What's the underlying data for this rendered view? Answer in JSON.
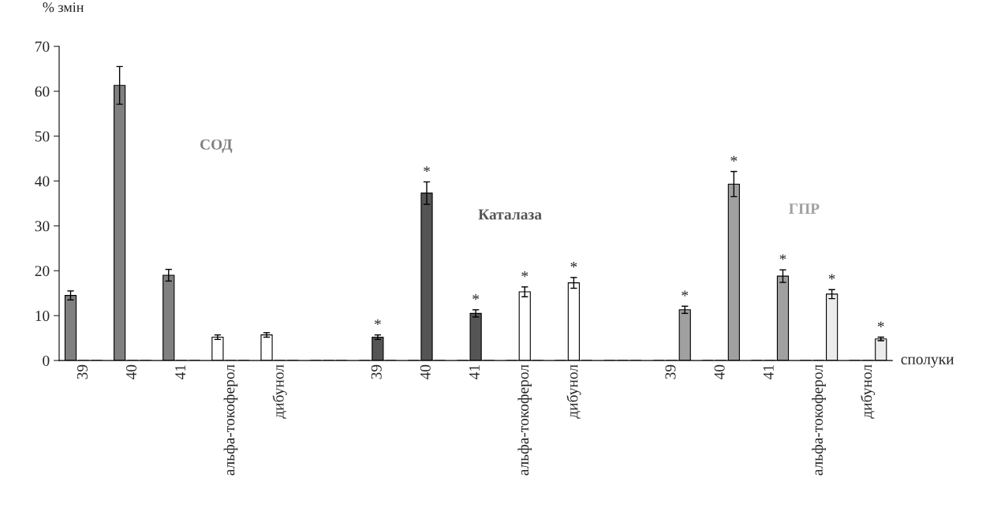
{
  "chart_data": {
    "type": "bar",
    "ylabel": "% змін",
    "xlabel": "сполуки",
    "categories": [
      "39",
      "40",
      "41",
      "альфа-токоферол",
      "дибунол",
      null,
      "39",
      "40",
      "41",
      "альфа-токоферол",
      "дибунол",
      null,
      "39",
      "40",
      "41",
      "альфа-токоферол",
      "дибунол"
    ],
    "series": [
      {
        "name": "СОД",
        "color": "#808080",
        "colors": [
          "#808080",
          "#808080",
          "#808080",
          "#ffffff",
          "#ffffff",
          "#808080",
          "#808080",
          "#808080",
          "#808080",
          "#808080",
          "#808080",
          "#808080",
          "#808080",
          "#808080",
          "#808080",
          "#808080",
          "#808080"
        ],
        "values": [
          14.5,
          61.3,
          19,
          5.2,
          5.7,
          0,
          0,
          0,
          0,
          0,
          0,
          0,
          0,
          0,
          0,
          0,
          0
        ],
        "errors": [
          1,
          4.2,
          1.3,
          0.5,
          0.5,
          null,
          null,
          null,
          null,
          null,
          null,
          null,
          null,
          null,
          null,
          null,
          null
        ]
      },
      {
        "name": "Каталаза",
        "color": "#555555",
        "colors": [
          "#555555",
          "#555555",
          "#555555",
          "#555555",
          "#555555",
          "#555555",
          "#555555",
          "#555555",
          "#555555",
          "#ffffff",
          "#ffffff",
          "#555555",
          "#555555",
          "#555555",
          "#555555",
          "#555555",
          "#555555"
        ],
        "values": [
          0,
          0,
          0,
          0,
          0,
          0,
          5.2,
          37.3,
          10.5,
          15.3,
          17.3,
          0,
          0,
          0,
          0,
          0,
          0
        ],
        "errors": [
          null,
          null,
          null,
          null,
          null,
          null,
          0.5,
          2.5,
          0.8,
          1.1,
          1.2,
          null,
          null,
          null,
          null,
          null,
          null
        ],
        "value_labels": [
          null,
          null,
          null,
          null,
          null,
          null,
          "*",
          "*",
          "*",
          "*",
          "*",
          null,
          null,
          null,
          null,
          null,
          null
        ]
      },
      {
        "name": "ГПР",
        "color": "#a0a0a0",
        "colors": [
          "#a0a0a0",
          "#a0a0a0",
          "#a0a0a0",
          "#a0a0a0",
          "#a0a0a0",
          "#a0a0a0",
          "#a0a0a0",
          "#a0a0a0",
          "#a0a0a0",
          "#a0a0a0",
          "#a0a0a0",
          "#a0a0a0",
          "#a0a0a0",
          "#a0a0a0",
          "#a0a0a0",
          "#ececec",
          "#ececec"
        ],
        "values": [
          0,
          0,
          0,
          0,
          0,
          0,
          0,
          0,
          0,
          0,
          0,
          0,
          11.3,
          39.3,
          18.8,
          14.8,
          4.8
        ],
        "errors": [
          null,
          null,
          null,
          null,
          null,
          null,
          null,
          null,
          null,
          null,
          null,
          null,
          0.8,
          2.8,
          1.4,
          1,
          0.4
        ],
        "value_labels": [
          null,
          null,
          null,
          null,
          null,
          null,
          null,
          null,
          null,
          null,
          null,
          null,
          "*",
          "*",
          "*",
          "*",
          "*"
        ]
      }
    ],
    "ylim": [
      0,
      70
    ],
    "yticks": [
      0,
      10,
      20,
      30,
      40,
      50,
      60,
      70
    ],
    "grid": false,
    "legend": false
  }
}
